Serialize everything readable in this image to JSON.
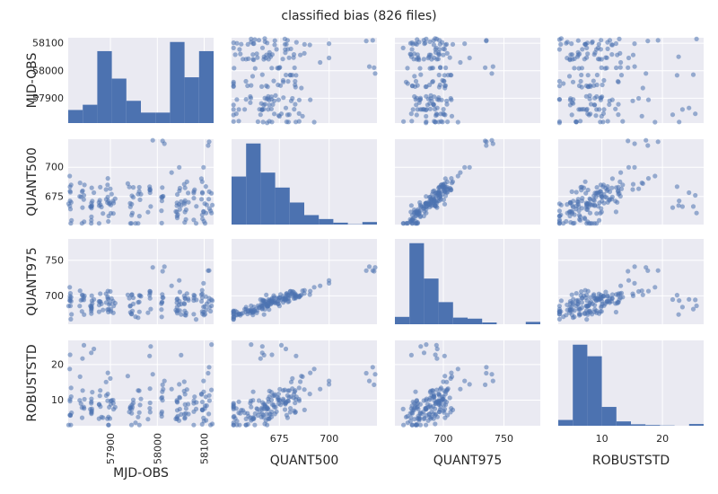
{
  "chart_data": {
    "type": "scatter",
    "title": "classified bias (826 files)",
    "variables": [
      "MJD-OBS",
      "QUANT500",
      "QUANT975",
      "ROBUSTSTD"
    ],
    "ranges": {
      "MJD-OBS": [
        57810,
        58120
      ],
      "QUANT500": [
        651,
        724
      ],
      "QUANT975": [
        660,
        780
      ],
      "ROBUSTSTD": [
        2.8,
        26.8
      ]
    },
    "ticks": {
      "MJD-OBS": [
        57900,
        58000,
        58100
      ],
      "QUANT500": [
        675,
        700,
        725
      ],
      "QUANT975": [
        700,
        750
      ],
      "ROBUSTSTD": [
        10,
        20
      ]
    },
    "x_ticks": {
      "MJD-OBS": [
        57900,
        58000,
        58100
      ],
      "QUANT500": [
        675,
        700
      ],
      "QUANT975": [
        700,
        750
      ],
      "ROBUSTSTD": [
        10,
        20
      ]
    },
    "grid": true,
    "series": [
      {
        "var": "MJD-OBS",
        "hist_counts": [
          10,
          14,
          55,
          34,
          17,
          8,
          8,
          62,
          35,
          55
        ]
      },
      {
        "var": "QUANT500",
        "hist_counts": [
          305,
          515,
          330,
          235,
          140,
          60,
          35,
          12,
          2,
          16
        ]
      },
      {
        "var": "QUANT975",
        "hist_counts": [
          50,
          550,
          310,
          150,
          45,
          38,
          12,
          0,
          0,
          16
        ]
      },
      {
        "var": "ROBUSTSTD",
        "hist_counts": [
          40,
          560,
          480,
          130,
          30,
          10,
          5,
          2,
          0,
          12
        ]
      }
    ]
  },
  "colors": {
    "background": "#ffffff",
    "panel": "#eaeaf2",
    "grid": "#ffffff",
    "bars": "#4c72b0",
    "points": "#4c72b0"
  }
}
